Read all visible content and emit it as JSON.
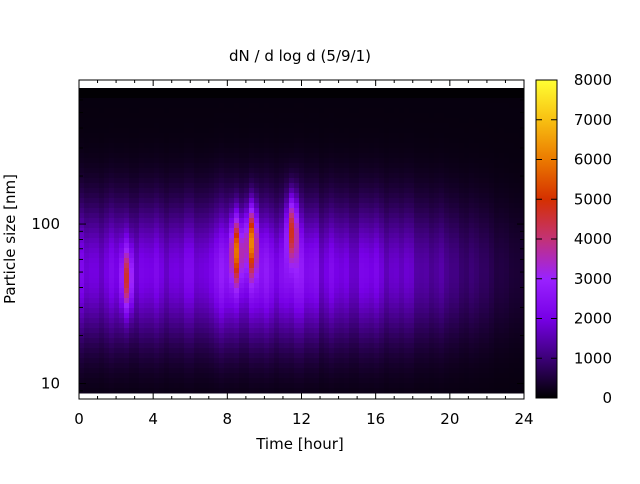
{
  "chart_data": {
    "type": "heatmap",
    "title": "dN / d log d (5/9/1)",
    "xlabel": "Time [hour]",
    "ylabel": "Particle size [nm]",
    "xlim": [
      0,
      24
    ],
    "ylim": [
      8,
      800
    ],
    "y_scale": "log",
    "x_ticks": [
      0,
      4,
      8,
      12,
      16,
      20,
      24
    ],
    "x_tick_labels": [
      "0",
      "4",
      "8",
      "12",
      "16",
      "20",
      "24"
    ],
    "y_ticks": [
      10,
      100
    ],
    "y_tick_labels": [
      "10",
      "100"
    ],
    "colorbar": {
      "min": 0,
      "max": 8000,
      "ticks": [
        0,
        1000,
        2000,
        3000,
        4000,
        5000,
        6000,
        7000,
        8000
      ],
      "tick_labels": [
        "0",
        "1000",
        "2000",
        "3000",
        "4000",
        "5000",
        "6000",
        "7000",
        "8000"
      ],
      "colormap": [
        "#000000",
        "#3c0078",
        "#7700e6",
        "#9a22ff",
        "#c33276",
        "#d53000",
        "#eb7a00",
        "#f8c012",
        "#ffff33"
      ]
    },
    "hotspots": [
      {
        "x": 2.6,
        "y": 45,
        "value": 5200
      },
      {
        "x": 8.5,
        "y": 70,
        "value": 6200
      },
      {
        "x": 9.3,
        "y": 80,
        "value": 6600
      },
      {
        "x": 11.5,
        "y": 95,
        "value": 5800
      }
    ],
    "grid": false,
    "legend": "colorbar-right"
  }
}
